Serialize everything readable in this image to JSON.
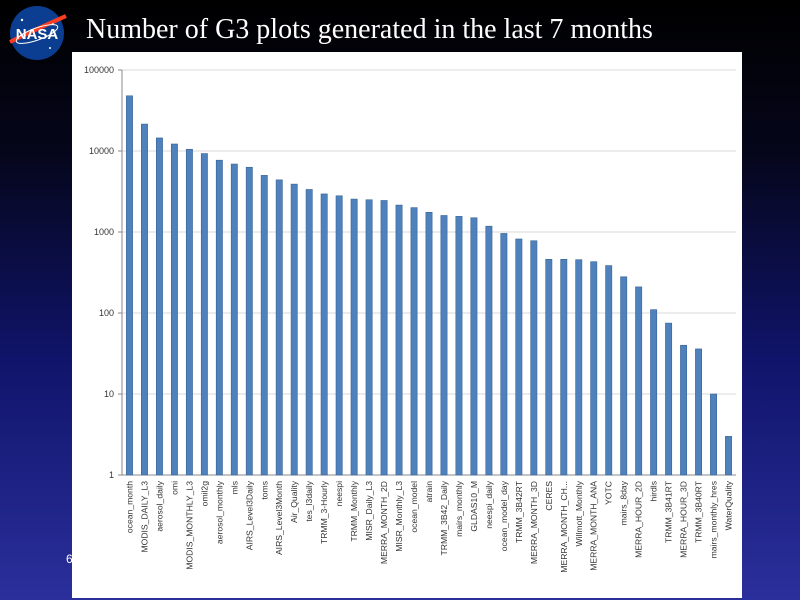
{
  "slide": {
    "title": "Number of G3 plots generated in the last 7 months",
    "slide_number": "6",
    "logo_text": "NASA"
  },
  "colors": {
    "bar_fill": "#4f81bd",
    "bar_edge": "#3a6494",
    "axis": "#888888",
    "gridline": "#d9d9d9",
    "text": "#333333"
  },
  "chart_data": {
    "type": "bar",
    "title": "Number of G3 plots generated in the last 7 months",
    "xlabel": "",
    "ylabel": "",
    "yscale": "log",
    "ylim": [
      1,
      100000
    ],
    "yticks": [
      1,
      10,
      100,
      1000,
      10000,
      100000
    ],
    "ytick_labels": [
      "1",
      "10",
      "100",
      "1000",
      "10000",
      "100000"
    ],
    "grid": true,
    "legend": false,
    "categories": [
      "ocean_month",
      "MODIS_DAILY_L3",
      "aerosol_daily",
      "omi",
      "MODIS_MONTHLY_L3",
      "omil2g",
      "aerosol_monthly",
      "mls",
      "AIRS_Level3Daily",
      "toms",
      "AIRS_Level3Month",
      "Air_Quality",
      "tes_l3daily",
      "TRMM_3-Hourly",
      "neespi",
      "TRMM_Monthly",
      "MISR_Daily_L3",
      "MERRA_MONTH_2D",
      "MISR_Monthly_L3",
      "ocean_model",
      "atrain",
      "TRMM_3B42_Daily",
      "mairs_monthly",
      "GLDAS10_M",
      "neespi_daily",
      "ocean_model_day",
      "TRMM_3B42RT",
      "MERRA_MONTH_3D",
      "CERES",
      "MERRA_MONTH_CH...",
      "Willmott_Monthly",
      "MERRA_MONTH_ANA",
      "YOTC",
      "mairs_8day",
      "MERRA_HOUR_2D",
      "hirdls",
      "TRMM_3B41RT",
      "MERRA_HOUR_3D",
      "TRMM_3B40RT",
      "mairs_monthly_hres",
      "WaterQuality"
    ],
    "values": [
      48000,
      21500,
      14500,
      12200,
      10500,
      9300,
      7700,
      6900,
      6300,
      5000,
      4400,
      3900,
      3350,
      2950,
      2800,
      2550,
      2500,
      2450,
      2150,
      2000,
      1750,
      1600,
      1560,
      1500,
      1180,
      960,
      820,
      780,
      460,
      460,
      455,
      430,
      385,
      280,
      210,
      110,
      75,
      40,
      36,
      10,
      3
    ]
  }
}
